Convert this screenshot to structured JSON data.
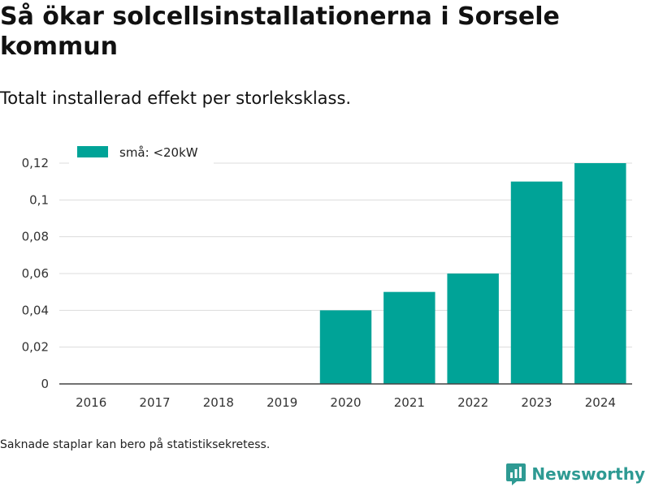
{
  "title": "Så ökar solcellsinstallationerna i Sorsele kommun",
  "subtitle": "Totalt installerad effekt per storleksklass.",
  "footnote": "Saknade staplar kan bero på statistiksekretess.",
  "brand": {
    "name": "Newsworthy",
    "icon": "newsworthy-logo-icon",
    "color": "#2e9a93"
  },
  "chart_data": {
    "type": "bar",
    "categories": [
      "2016",
      "2017",
      "2018",
      "2019",
      "2020",
      "2021",
      "2022",
      "2023",
      "2024"
    ],
    "series": [
      {
        "name": "små: <20kW",
        "color": "#00a397",
        "values": [
          0,
          0,
          0,
          0,
          0.04,
          0.05,
          0.06,
          0.11,
          0.12
        ]
      }
    ],
    "ylim": [
      0,
      0.12
    ],
    "yticks": [
      0,
      0.02,
      0.04,
      0.06,
      0.08,
      0.1,
      0.12
    ],
    "ytick_labels": [
      "0",
      "0,02",
      "0,04",
      "0,06",
      "0,08",
      "0,1",
      "0,12"
    ],
    "grid": true,
    "legend_position": "top-left",
    "xlabel": "",
    "ylabel": ""
  }
}
